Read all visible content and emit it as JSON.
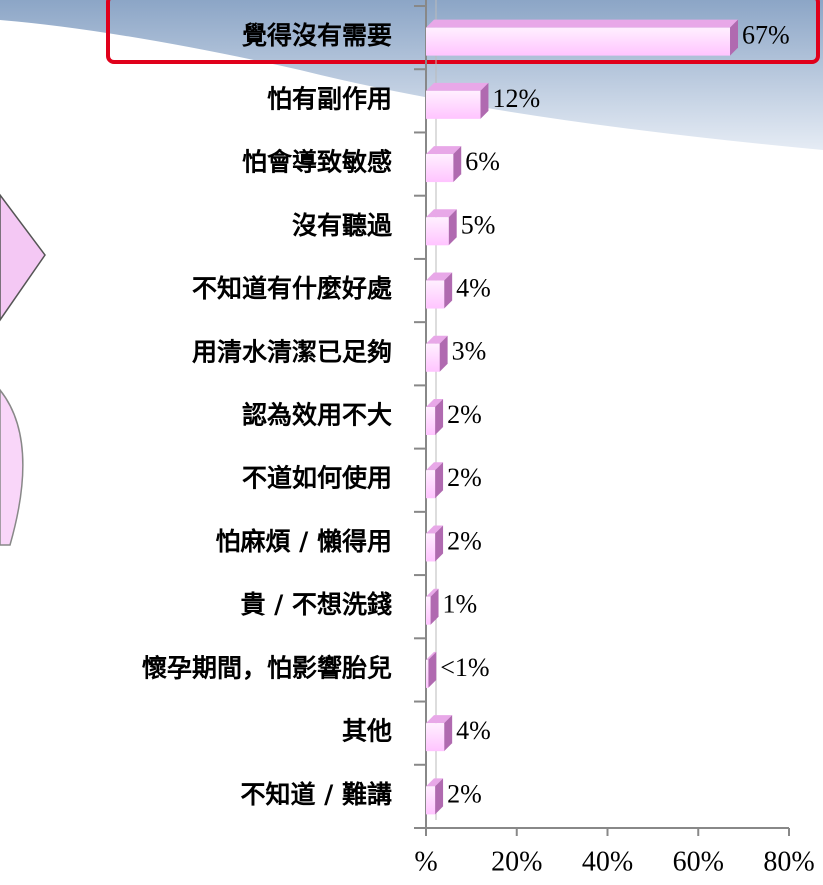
{
  "chart_data": {
    "type": "bar",
    "orientation": "horizontal",
    "categories": [
      "覺得沒有需要",
      "怕有副作用",
      "怕會導致敏感",
      "沒有聽過",
      "不知道有什麼好處",
      "用清水清潔已足夠",
      "認為效用不大",
      "不道如何使用",
      "怕麻煩 / 懶得用",
      "貴 / 不想洗錢",
      "懷孕期間，怕影響胎兒",
      "其他",
      "不知道 / 難講"
    ],
    "values": [
      67,
      12,
      6,
      5,
      4,
      3,
      2,
      2,
      2,
      1,
      0.5,
      4,
      2
    ],
    "value_labels": [
      "67%",
      "12%",
      "6%",
      "5%",
      "4%",
      "3%",
      "2%",
      "2%",
      "2%",
      "1%",
      "<1%",
      "4%",
      "2%"
    ],
    "color": "#ffccff",
    "xlim": [
      0,
      80
    ],
    "xticks": [
      {
        "value": 0,
        "label": "%"
      },
      {
        "value": 20,
        "label": "20%"
      },
      {
        "value": 40,
        "label": "40%"
      },
      {
        "value": 60,
        "label": "60%"
      },
      {
        "value": 80,
        "label": "80%"
      }
    ]
  }
}
